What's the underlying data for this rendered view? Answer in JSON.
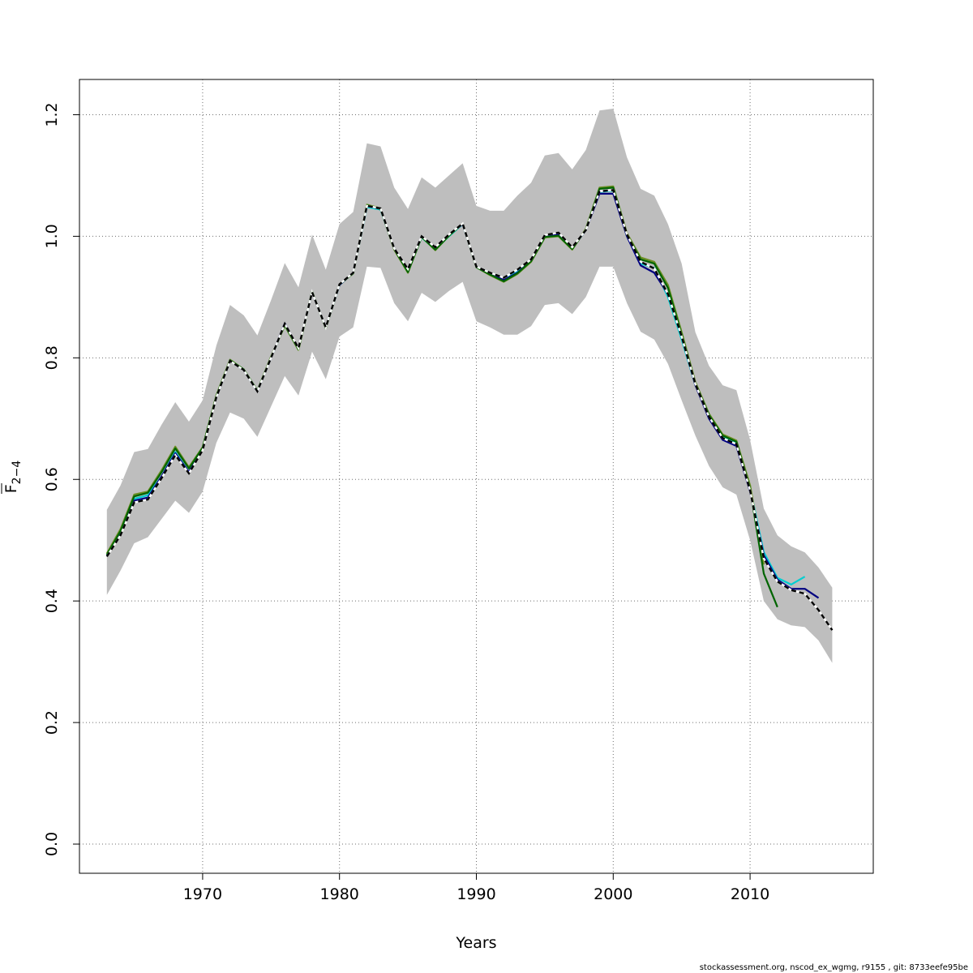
{
  "chart_data": {
    "type": "line",
    "title": "",
    "xlabel": "Years",
    "ylabel": "F",
    "ylabel_sub": "2−4",
    "xlim": [
      1961,
      2019
    ],
    "ylim": [
      -0.048,
      1.258
    ],
    "x_ticks": [
      1970,
      1980,
      1990,
      2000,
      2010
    ],
    "y_ticks": [
      0.0,
      0.2,
      0.4,
      0.6,
      0.8,
      1.0,
      1.2
    ],
    "y_tick_labels": [
      "0.0",
      "0.2",
      "0.4",
      "0.6",
      "0.8",
      "1.0",
      "1.2"
    ],
    "grid": true,
    "confidence_band": {
      "x": [
        1963,
        1964,
        1965,
        1966,
        1967,
        1968,
        1969,
        1970,
        1971,
        1972,
        1973,
        1974,
        1975,
        1976,
        1977,
        1978,
        1979,
        1980,
        1981,
        1982,
        1983,
        1984,
        1985,
        1986,
        1987,
        1988,
        1989,
        1990,
        1991,
        1992,
        1993,
        1994,
        1995,
        1996,
        1997,
        1998,
        1999,
        2000,
        2001,
        2002,
        2003,
        2004,
        2005,
        2006,
        2007,
        2008,
        2009,
        2010,
        2011,
        2012,
        2013,
        2014,
        2015,
        2016
      ],
      "lower": [
        0.41,
        0.45,
        0.495,
        0.505,
        0.535,
        0.565,
        0.545,
        0.58,
        0.66,
        0.71,
        0.7,
        0.67,
        0.72,
        0.77,
        0.738,
        0.81,
        0.765,
        0.835,
        0.85,
        0.95,
        0.948,
        0.89,
        0.86,
        0.907,
        0.892,
        0.91,
        0.925,
        0.86,
        0.85,
        0.838,
        0.838,
        0.852,
        0.887,
        0.89,
        0.872,
        0.9,
        0.95,
        0.95,
        0.89,
        0.843,
        0.83,
        0.79,
        0.73,
        0.672,
        0.622,
        0.587,
        0.575,
        0.5,
        0.4,
        0.37,
        0.36,
        0.357,
        0.335,
        0.298
      ],
      "upper": [
        0.55,
        0.59,
        0.645,
        0.65,
        0.69,
        0.727,
        0.695,
        0.73,
        0.82,
        0.887,
        0.87,
        0.837,
        0.895,
        0.956,
        0.916,
        1.003,
        0.945,
        1.02,
        1.04,
        1.153,
        1.148,
        1.08,
        1.045,
        1.097,
        1.08,
        1.1,
        1.12,
        1.05,
        1.042,
        1.042,
        1.067,
        1.088,
        1.133,
        1.137,
        1.11,
        1.142,
        1.207,
        1.21,
        1.13,
        1.078,
        1.067,
        1.02,
        0.955,
        0.842,
        0.787,
        0.755,
        0.747,
        0.665,
        0.552,
        0.508,
        0.49,
        0.48,
        0.455,
        0.422
      ]
    },
    "series": [
      {
        "color": "#00ced1",
        "x": [
          1963,
          1964,
          1965,
          1966,
          1967,
          1968,
          1969,
          1970,
          1971,
          1972,
          1973,
          1974,
          1975,
          1976,
          1977,
          1978,
          1979,
          1980,
          1981,
          1982,
          1983,
          1984,
          1985,
          1986,
          1987,
          1988,
          1989,
          1990,
          1991,
          1992,
          1993,
          1994,
          1995,
          1996,
          1997,
          1998,
          1999,
          2000,
          2001,
          2002,
          2003,
          2004,
          2005,
          2006,
          2007,
          2008,
          2009,
          2010,
          2011,
          2012,
          2013,
          2014
        ],
        "y": [
          0.475,
          0.512,
          0.568,
          0.574,
          0.605,
          0.645,
          0.612,
          0.65,
          0.735,
          0.795,
          0.78,
          0.745,
          0.8,
          0.855,
          0.815,
          0.908,
          0.85,
          0.92,
          0.94,
          1.048,
          1.044,
          0.98,
          0.942,
          0.998,
          0.978,
          1.0,
          1.02,
          0.95,
          0.94,
          0.932,
          0.942,
          0.962,
          1.0,
          1.003,
          0.98,
          1.01,
          1.073,
          1.075,
          1.0,
          0.955,
          0.948,
          0.9,
          0.83,
          0.755,
          0.705,
          0.67,
          0.66,
          0.585,
          0.48,
          0.438,
          0.427,
          0.44
        ]
      },
      {
        "color": "#000080",
        "x": [
          1963,
          1964,
          1965,
          1966,
          1967,
          1968,
          1969,
          1970,
          1971,
          1972,
          1973,
          1974,
          1975,
          1976,
          1977,
          1978,
          1979,
          1980,
          1981,
          1982,
          1983,
          1984,
          1985,
          1986,
          1987,
          1988,
          1989,
          1990,
          1991,
          1992,
          1993,
          1994,
          1995,
          1996,
          1997,
          1998,
          1999,
          2000,
          2001,
          2002,
          2003,
          2004,
          2005,
          2006,
          2007,
          2008,
          2009,
          2010,
          2011,
          2012,
          2013,
          2014,
          2015
        ],
        "y": [
          0.475,
          0.51,
          0.565,
          0.57,
          0.605,
          0.643,
          0.612,
          0.65,
          0.735,
          0.795,
          0.78,
          0.745,
          0.8,
          0.857,
          0.815,
          0.908,
          0.85,
          0.92,
          0.94,
          1.05,
          1.045,
          0.98,
          0.945,
          1.0,
          0.98,
          1.002,
          1.02,
          0.95,
          0.938,
          0.928,
          0.94,
          0.96,
          1.0,
          1.003,
          0.98,
          1.01,
          1.07,
          1.07,
          1.0,
          0.952,
          0.94,
          0.905,
          0.835,
          0.755,
          0.7,
          0.665,
          0.655,
          0.58,
          0.475,
          0.435,
          0.42,
          0.42,
          0.405
        ]
      },
      {
        "color": "#6b8e23",
        "x": [
          1963,
          1964,
          1965,
          1966,
          1967,
          1968,
          1969,
          1970,
          1971,
          1972,
          1973,
          1974,
          1975,
          1976,
          1977,
          1978,
          1979,
          1980,
          1981,
          1982,
          1983,
          1984,
          1985,
          1986,
          1987,
          1988,
          1989,
          1990,
          1991,
          1992,
          1993,
          1994,
          1995,
          1996,
          1997,
          1998,
          1999,
          2000,
          2001,
          2002,
          2003,
          2004,
          2005,
          2006,
          2007,
          2008,
          2009,
          2010,
          2011
        ],
        "y": [
          0.478,
          0.518,
          0.575,
          0.58,
          0.615,
          0.654,
          0.62,
          0.653,
          0.738,
          0.797,
          0.781,
          0.746,
          0.802,
          0.853,
          0.813,
          0.909,
          0.849,
          0.921,
          0.939,
          1.052,
          1.046,
          0.978,
          0.94,
          0.999,
          0.977,
          1.001,
          1.021,
          0.949,
          0.936,
          0.925,
          0.938,
          0.958,
          0.998,
          1.0,
          0.978,
          1.012,
          1.08,
          1.082,
          1.005,
          0.965,
          0.958,
          0.92,
          0.842,
          0.76,
          0.708,
          0.674,
          0.664,
          0.59,
          0.46
        ]
      },
      {
        "color": "#006400",
        "x": [
          1963,
          1964,
          1965,
          1966,
          1967,
          1968,
          1969,
          1970,
          1971,
          1972,
          1973,
          1974,
          1975,
          1976,
          1977,
          1978,
          1979,
          1980,
          1981,
          1982,
          1983,
          1984,
          1985,
          1986,
          1987,
          1988,
          1989,
          1990,
          1991,
          1992,
          1993,
          1994,
          1995,
          1996,
          1997,
          1998,
          1999,
          2000,
          2001,
          2002,
          2003,
          2004,
          2005,
          2006,
          2007,
          2008,
          2009,
          2010,
          2011,
          2012
        ],
        "y": [
          0.476,
          0.515,
          0.572,
          0.578,
          0.612,
          0.651,
          0.618,
          0.652,
          0.737,
          0.796,
          0.781,
          0.746,
          0.801,
          0.854,
          0.814,
          0.909,
          0.849,
          0.921,
          0.939,
          1.051,
          1.045,
          0.979,
          0.941,
          0.999,
          0.978,
          1.001,
          1.021,
          0.949,
          0.937,
          0.926,
          0.939,
          0.959,
          0.999,
          1.001,
          0.979,
          1.011,
          1.078,
          1.08,
          1.003,
          0.962,
          0.955,
          0.915,
          0.838,
          0.758,
          0.706,
          0.672,
          0.662,
          0.585,
          0.445,
          0.39
        ]
      },
      {
        "color": "#000000",
        "dashed": true,
        "x": [
          1963,
          1964,
          1965,
          1966,
          1967,
          1968,
          1969,
          1970,
          1971,
          1972,
          1973,
          1974,
          1975,
          1976,
          1977,
          1978,
          1979,
          1980,
          1981,
          1982,
          1983,
          1984,
          1985,
          1986,
          1987,
          1988,
          1989,
          1990,
          1991,
          1992,
          1993,
          1994,
          1995,
          1996,
          1997,
          1998,
          1999,
          2000,
          2001,
          2002,
          2003,
          2004,
          2005,
          2006,
          2007,
          2008,
          2009,
          2010,
          2011,
          2012,
          2013,
          2014,
          2015,
          2016
        ],
        "y": [
          0.473,
          0.508,
          0.562,
          0.567,
          0.602,
          0.64,
          0.61,
          0.648,
          0.735,
          0.795,
          0.78,
          0.745,
          0.8,
          0.856,
          0.816,
          0.908,
          0.85,
          0.921,
          0.94,
          1.05,
          1.046,
          0.98,
          0.946,
          1.0,
          0.982,
          1.003,
          1.021,
          0.95,
          0.94,
          0.932,
          0.945,
          0.962,
          1.002,
          1.006,
          0.982,
          1.01,
          1.074,
          1.076,
          1.003,
          0.958,
          0.947,
          0.905,
          0.835,
          0.757,
          0.703,
          0.668,
          0.658,
          0.582,
          0.47,
          0.432,
          0.418,
          0.412,
          0.385,
          0.352
        ]
      }
    ]
  },
  "footer": "stockassessment.org, nscod_ex_wgmg, r9155 , git: 8733eefe95be"
}
